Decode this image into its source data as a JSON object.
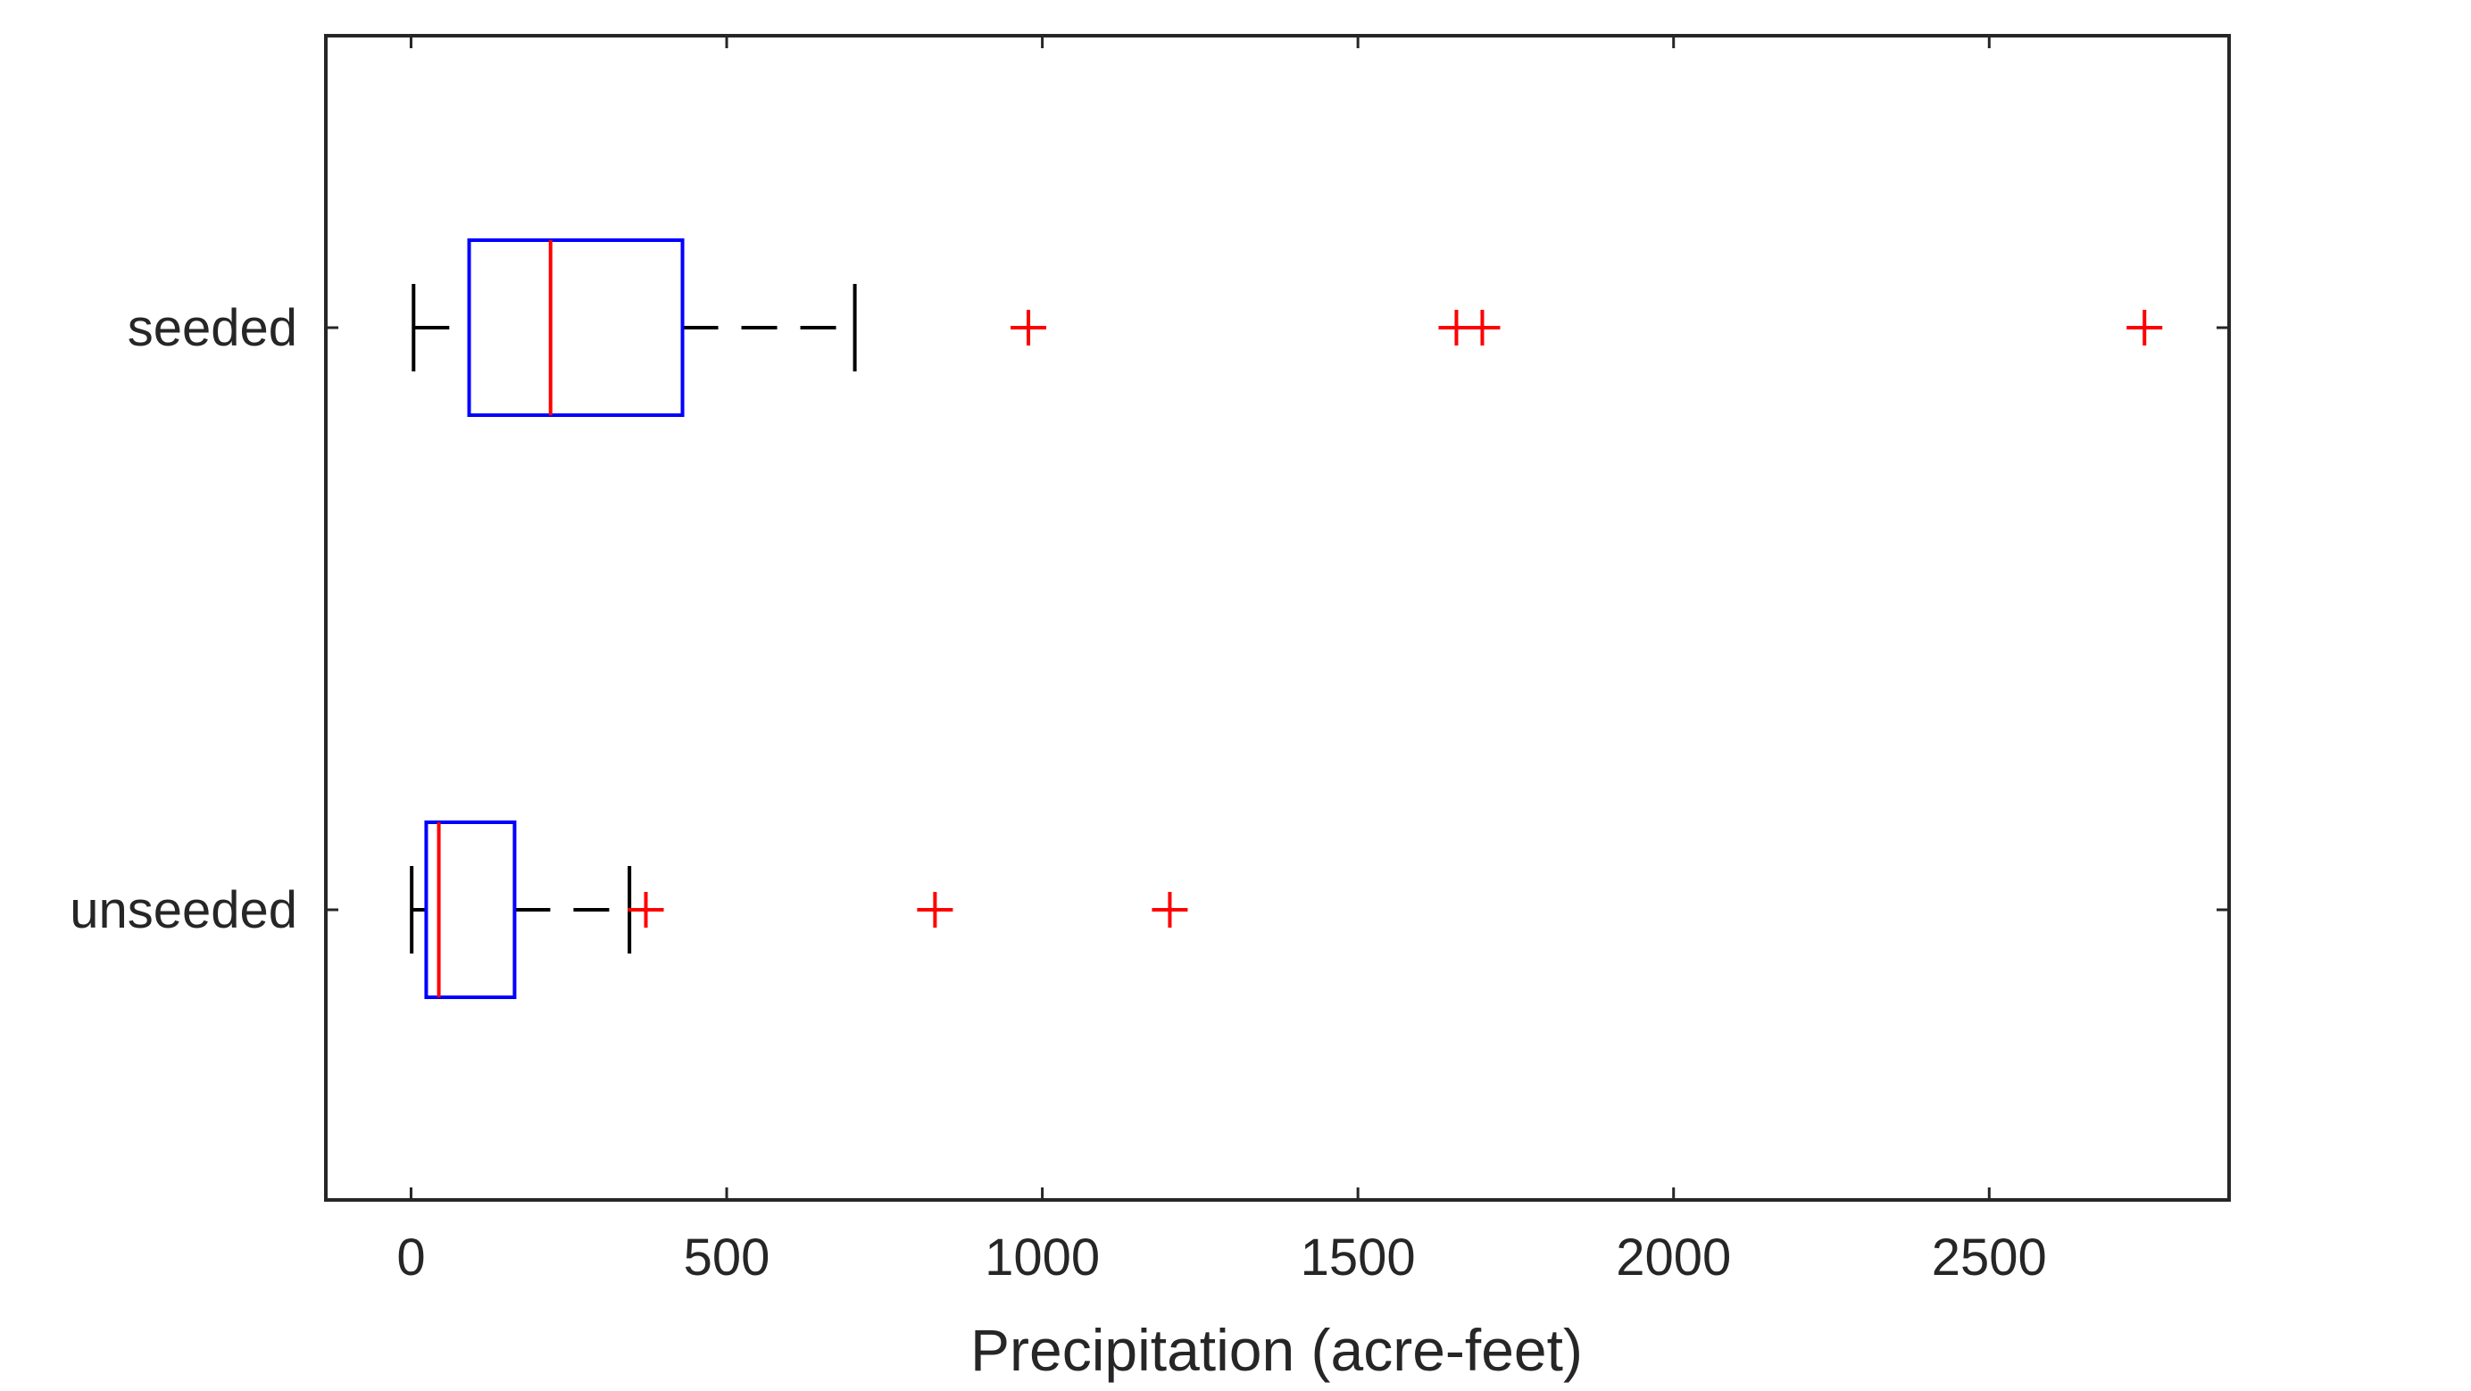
{
  "chart_data": {
    "type": "boxplot",
    "orientation": "horizontal",
    "title": "",
    "xlabel": "Precipitation (acre-feet)",
    "ylabel": "",
    "xlim": [
      -135,
      2880
    ],
    "xticks": [
      0,
      500,
      1000,
      1500,
      2000,
      2500
    ],
    "grid": false,
    "legend": "none",
    "groups": [
      {
        "name": "seeded",
        "whisker_low": 4,
        "q1": 92,
        "median": 221,
        "q3": 430,
        "whisker_high": 703,
        "outliers": [
          978,
          1656,
          1697,
          2746
        ]
      },
      {
        "name": "unseeded",
        "whisker_low": 1,
        "q1": 24,
        "median": 44,
        "q3": 164,
        "whisker_high": 346,
        "outliers": [
          372,
          830,
          1202
        ]
      }
    ],
    "colors": {
      "box": "#0000ff",
      "median": "#ff0000",
      "whisker": "#000000",
      "outlier": "#ff0000",
      "axis": "#262626"
    }
  }
}
